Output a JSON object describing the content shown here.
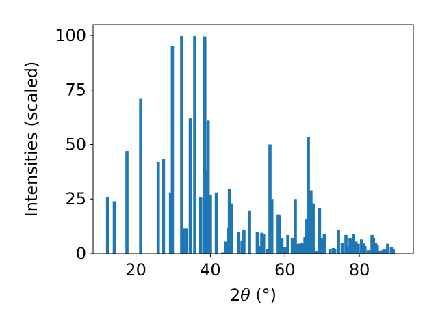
{
  "chart_data": {
    "type": "bar",
    "xlabel_prefix": "2",
    "xlabel_symbol": "θ",
    "xlabel_suffix": " (°)",
    "ylabel": "Intensities (scaled)",
    "xlim": [
      8.5,
      94.5
    ],
    "ylim": [
      0,
      105
    ],
    "xticks": [
      20,
      40,
      60,
      80
    ],
    "yticks": [
      0,
      25,
      50,
      75,
      100
    ],
    "bar_width": 0.85,
    "grid": false,
    "legend": "none",
    "bar_color": "#1f77b4",
    "x": [
      12.4,
      14.2,
      17.6,
      21.3,
      26.0,
      27.4,
      29.3,
      29.8,
      32.3,
      32.9,
      33.6,
      34.6,
      35.8,
      37.4,
      38.5,
      38.9,
      39.4,
      40.0,
      41.6,
      43.3,
      44.2,
      44.8,
      45.1,
      45.6,
      47.6,
      48.5,
      49.0,
      50.5,
      52.6,
      53.0,
      53.8,
      54.3,
      55.4,
      56.0,
      56.5,
      58.2,
      58.6,
      59.2,
      60.0,
      60.8,
      62.0,
      62.8,
      63.6,
      64.5,
      65.1,
      65.4,
      65.9,
      66.3,
      67.0,
      67.7,
      68.4,
      69.3,
      70.0,
      70.6,
      72.1,
      73.0,
      73.4,
      74.4,
      75.4,
      76.4,
      76.9,
      77.5,
      77.9,
      78.4,
      79.1,
      79.7,
      80.6,
      81.0,
      81.5,
      82.4,
      82.9,
      83.4,
      83.8,
      84.4,
      84.8,
      85.3,
      86.1,
      86.7,
      87.2,
      87.6,
      88.6,
      89.1
    ],
    "values": [
      26,
      24,
      47,
      71,
      42,
      43.5,
      28,
      95,
      100,
      11.5,
      11.5,
      62,
      100,
      26,
      99.5,
      38,
      61,
      27,
      28,
      0.5,
      5.5,
      12,
      29.5,
      23,
      10,
      6,
      11,
      19.5,
      10,
      3.5,
      9.5,
      9,
      2,
      50,
      25,
      18,
      17.5,
      7,
      3,
      8.5,
      7,
      25,
      4.5,
      5,
      4.5,
      7.5,
      16,
      53.5,
      29,
      23,
      1,
      21,
      7,
      9,
      2,
      2.5,
      2,
      11,
      5,
      8.5,
      3,
      7,
      6.5,
      9,
      5.5,
      4.5,
      6.5,
      5,
      3.5,
      1.5,
      1.5,
      8.5,
      7,
      5,
      4,
      1,
      1.5,
      2,
      1.5,
      4.5,
      3,
      2
    ]
  }
}
